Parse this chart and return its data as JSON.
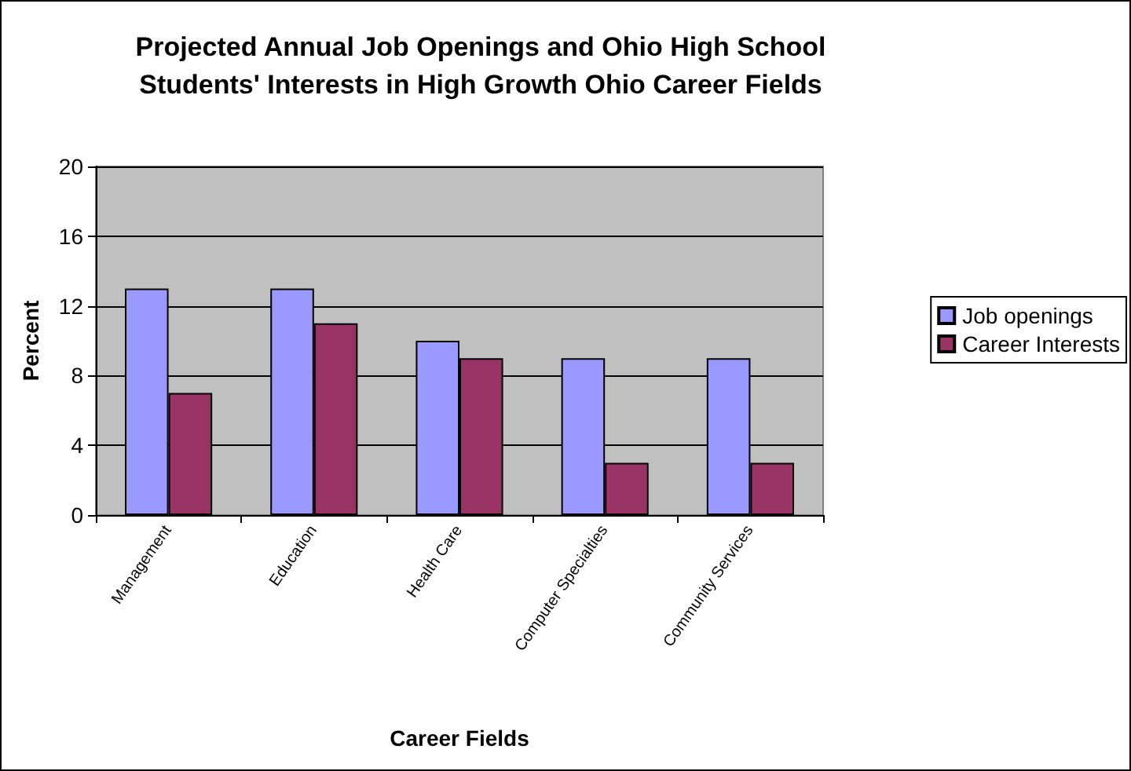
{
  "chart_data": {
    "type": "bar",
    "title": "Projected Annual Job Openings and Ohio High School\nStudents' Interests in High Growth Ohio Career Fields",
    "xlabel": "Career Fields",
    "ylabel": "Percent",
    "categories": [
      "Management",
      "Education",
      "Health Care",
      "Computer Specialties",
      "Community Services"
    ],
    "series": [
      {
        "name": "Job openings",
        "color": "#9999ff",
        "values": [
          13,
          13,
          10,
          9,
          9
        ]
      },
      {
        "name": "Career Interests",
        "color": "#993366",
        "values": [
          7,
          11,
          9,
          3,
          3
        ]
      }
    ],
    "ylim": [
      0,
      20
    ],
    "yticks": [
      0,
      4,
      8,
      12,
      16,
      20
    ],
    "grid": "y",
    "legend": "right"
  }
}
